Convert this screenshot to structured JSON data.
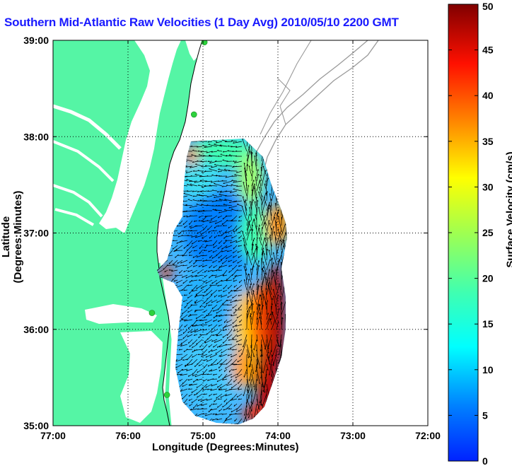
{
  "title": "Southern Mid-Atlantic Raw Velocities (1 Day Avg) 2010/05/10 2200 GMT",
  "map": {
    "xlabel": "Longitude (Degrees:Minutes)",
    "ylabel": "Latitude (Degrees:Minutes)",
    "lon_range": [
      -77,
      -72
    ],
    "lat_range": [
      35,
      39
    ],
    "x_ticks": [
      {
        "value": -77,
        "label": "77:00"
      },
      {
        "value": -76,
        "label": "76:00"
      },
      {
        "value": -75,
        "label": "75:00"
      },
      {
        "value": -74,
        "label": "74:00"
      },
      {
        "value": -73,
        "label": "73:00"
      },
      {
        "value": -72,
        "label": "72:00"
      }
    ],
    "y_ticks": [
      {
        "value": 39,
        "label": "39:00"
      },
      {
        "value": 38,
        "label": "38:00"
      },
      {
        "value": 37,
        "label": "37:00"
      },
      {
        "value": 36,
        "label": "36:00"
      },
      {
        "value": 35,
        "label": "35:00"
      }
    ],
    "grid": "dotted",
    "colors": {
      "land": "#55f5a5",
      "water": "#ffffff",
      "isobath": "#9a9a9a",
      "arrow": "#000000",
      "station": "#2dd23c"
    },
    "stations": [
      {
        "lon": -74.98,
        "lat": 38.98
      },
      {
        "lon": -75.12,
        "lat": 38.23
      },
      {
        "lon": -75.68,
        "lat": 36.17
      },
      {
        "lon": -75.48,
        "lat": 35.32
      }
    ]
  },
  "colorbar": {
    "label": "Surface Velocity (cm/s)",
    "min": 0,
    "max": 50,
    "ticks": [
      {
        "value": 0,
        "label": "0"
      },
      {
        "value": 5,
        "label": "5"
      },
      {
        "value": 10,
        "label": "10"
      },
      {
        "value": 15,
        "label": "15"
      },
      {
        "value": 20,
        "label": "20"
      },
      {
        "value": 25,
        "label": "25"
      },
      {
        "value": 30,
        "label": "30"
      },
      {
        "value": 35,
        "label": "35"
      },
      {
        "value": 40,
        "label": "40"
      },
      {
        "value": 45,
        "label": "45"
      },
      {
        "value": 50,
        "label": "50"
      }
    ],
    "colormap": "jet"
  }
}
